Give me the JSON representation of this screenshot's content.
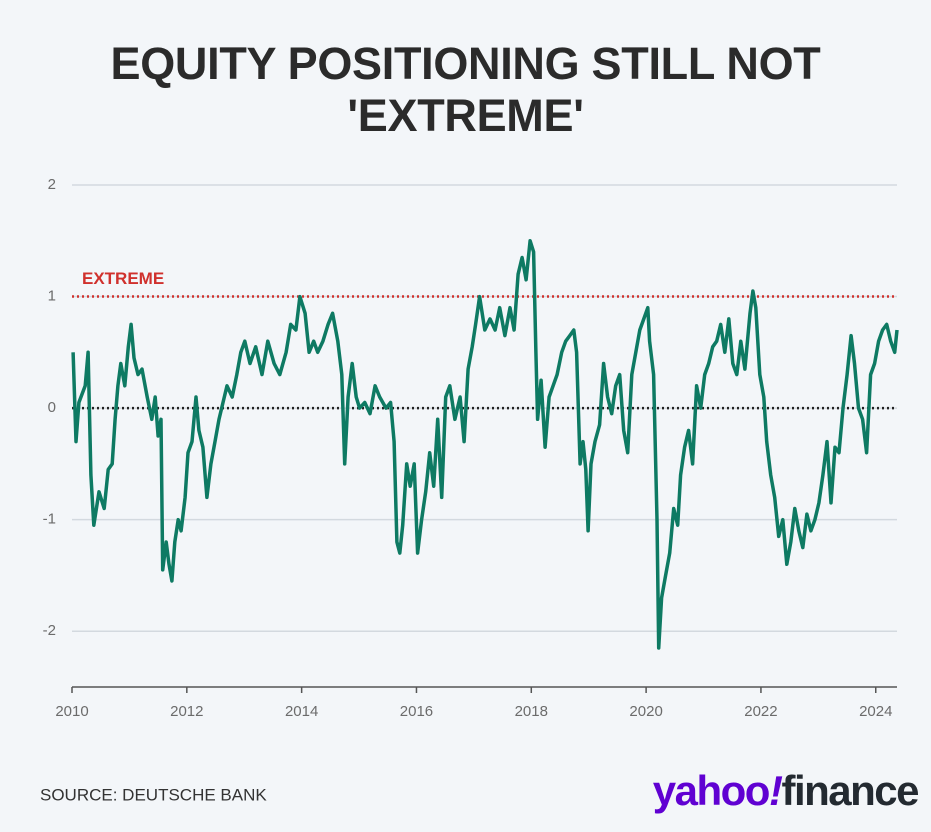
{
  "chart_data": {
    "type": "line",
    "title": "EQUITY POSITIONING STILL NOT 'EXTREME'",
    "source": "SOURCE: DEUTSCHE BANK",
    "logo": {
      "brand": "yahoo",
      "mark": "!",
      "product": "finance"
    },
    "x": [
      2010.02,
      2010.07,
      2010.12,
      2010.23,
      2010.28,
      2010.33,
      2010.38,
      2010.47,
      2010.56,
      2010.63,
      2010.7,
      2010.75,
      2010.8,
      2010.85,
      2010.92,
      2010.98,
      2011.03,
      2011.08,
      2011.15,
      2011.22,
      2011.31,
      2011.39,
      2011.45,
      2011.5,
      2011.55,
      2011.58,
      2011.64,
      2011.69,
      2011.74,
      2011.79,
      2011.85,
      2011.9,
      2011.97,
      2012.02,
      2012.09,
      2012.16,
      2012.21,
      2012.28,
      2012.35,
      2012.42,
      2012.49,
      2012.56,
      2012.63,
      2012.7,
      2012.79,
      2012.87,
      2012.94,
      2013.01,
      2013.1,
      2013.2,
      2013.31,
      2013.41,
      2013.52,
      2013.62,
      2013.73,
      2013.81,
      2013.9,
      2013.97,
      2014.06,
      2014.13,
      2014.21,
      2014.28,
      2014.37,
      2014.46,
      2014.54,
      2014.63,
      2014.7,
      2014.75,
      2014.81,
      2014.88,
      2014.95,
      2015.01,
      2015.1,
      2015.19,
      2015.28,
      2015.36,
      2015.47,
      2015.55,
      2015.61,
      2015.66,
      2015.71,
      2015.76,
      2015.83,
      2015.89,
      2015.96,
      2016.02,
      2016.09,
      2016.16,
      2016.23,
      2016.3,
      2016.37,
      2016.44,
      2016.51,
      2016.58,
      2016.67,
      2016.76,
      2016.83,
      2016.9,
      2016.97,
      2017.03,
      2017.1,
      2017.19,
      2017.28,
      2017.37,
      2017.45,
      2017.54,
      2017.63,
      2017.7,
      2017.77,
      2017.84,
      2017.91,
      2017.98,
      2018.04,
      2018.08,
      2018.11,
      2018.17,
      2018.24,
      2018.31,
      2018.38,
      2018.45,
      2018.53,
      2018.6,
      2018.67,
      2018.74,
      2018.79,
      2018.85,
      2018.9,
      2018.95,
      2018.99,
      2019.04,
      2019.11,
      2019.19,
      2019.26,
      2019.33,
      2019.4,
      2019.47,
      2019.54,
      2019.61,
      2019.68,
      2019.75,
      2019.82,
      2019.89,
      2019.96,
      2020.03,
      2020.06,
      2020.13,
      2020.19,
      2020.22,
      2020.27,
      2020.34,
      2020.41,
      2020.48,
      2020.55,
      2020.6,
      2020.67,
      2020.74,
      2020.81,
      2020.88,
      2020.95,
      2021.02,
      2021.09,
      2021.16,
      2021.23,
      2021.3,
      2021.37,
      2021.44,
      2021.51,
      2021.58,
      2021.65,
      2021.72,
      2021.81,
      2021.86,
      2021.91,
      2021.98,
      2022.05,
      2022.1,
      2022.17,
      2022.24,
      2022.31,
      2022.38,
      2022.45,
      2022.52,
      2022.59,
      2022.66,
      2022.73,
      2022.8,
      2022.87,
      2022.94,
      2023.01,
      2023.08,
      2023.15,
      2023.22,
      2023.29,
      2023.36,
      2023.43,
      2023.5,
      2023.57,
      2023.63,
      2023.7,
      2023.77,
      2023.84,
      2023.91,
      2023.98,
      2024.05,
      2024.12,
      2024.19,
      2024.26,
      2024.33,
      2024.37
    ],
    "series": [
      {
        "color": "#0e7a63",
        "values": [
          0.5,
          -0.3,
          0.05,
          0.2,
          0.5,
          -0.6,
          -1.05,
          -0.75,
          -0.9,
          -0.55,
          -0.5,
          -0.1,
          0.2,
          0.4,
          0.2,
          0.55,
          0.75,
          0.45,
          0.3,
          0.35,
          0.1,
          -0.1,
          0.1,
          -0.25,
          -0.1,
          -1.45,
          -1.2,
          -1.4,
          -1.55,
          -1.2,
          -1.0,
          -1.1,
          -0.8,
          -0.4,
          -0.3,
          0.1,
          -0.2,
          -0.35,
          -0.8,
          -0.5,
          -0.3,
          -0.1,
          0.05,
          0.2,
          0.1,
          0.3,
          0.5,
          0.6,
          0.4,
          0.55,
          0.3,
          0.6,
          0.4,
          0.3,
          0.5,
          0.75,
          0.7,
          1.0,
          0.85,
          0.5,
          0.6,
          0.5,
          0.6,
          0.75,
          0.85,
          0.6,
          0.3,
          -0.5,
          0.1,
          0.4,
          0.1,
          0.0,
          0.05,
          -0.05,
          0.2,
          0.1,
          0.0,
          0.05,
          -0.3,
          -1.2,
          -1.3,
          -1.05,
          -0.5,
          -0.7,
          -0.5,
          -1.3,
          -1.0,
          -0.75,
          -0.4,
          -0.7,
          -0.1,
          -0.8,
          0.1,
          0.2,
          -0.1,
          0.1,
          -0.3,
          0.35,
          0.55,
          0.75,
          1.0,
          0.7,
          0.8,
          0.7,
          0.9,
          0.65,
          0.9,
          0.7,
          1.2,
          1.35,
          1.15,
          1.5,
          1.4,
          0.5,
          -0.1,
          0.25,
          -0.35,
          0.1,
          0.2,
          0.3,
          0.5,
          0.6,
          0.65,
          0.7,
          0.5,
          -0.5,
          -0.3,
          -0.55,
          -1.1,
          -0.5,
          -0.3,
          -0.15,
          0.4,
          0.1,
          -0.05,
          0.2,
          0.3,
          -0.2,
          -0.4,
          0.3,
          0.5,
          0.7,
          0.8,
          0.9,
          0.6,
          0.3,
          -1.0,
          -2.15,
          -1.7,
          -1.5,
          -1.3,
          -0.9,
          -1.05,
          -0.6,
          -0.35,
          -0.2,
          -0.5,
          0.2,
          0.0,
          0.3,
          0.4,
          0.55,
          0.6,
          0.75,
          0.5,
          0.8,
          0.4,
          0.3,
          0.6,
          0.35,
          0.85,
          1.05,
          0.9,
          0.3,
          0.1,
          -0.3,
          -0.6,
          -0.8,
          -1.15,
          -1.0,
          -1.4,
          -1.2,
          -0.9,
          -1.1,
          -1.25,
          -0.95,
          -1.1,
          -1.0,
          -0.85,
          -0.6,
          -0.3,
          -0.85,
          -0.35,
          -0.4,
          0.0,
          0.3,
          0.65,
          0.4,
          0.0,
          -0.1,
          -0.4,
          0.3,
          0.4,
          0.6,
          0.7,
          0.75,
          0.6,
          0.5,
          0.7
        ]
      }
    ],
    "reference_lines": [
      {
        "value": 1,
        "label": "EXTREME",
        "color": "#d0312d"
      },
      {
        "value": 0,
        "color": "#222222"
      }
    ],
    "xlim": [
      2010,
      2024.37
    ],
    "xticks": [
      2010,
      2012,
      2014,
      2016,
      2018,
      2020,
      2022,
      2024
    ],
    "ylim": [
      -2.5,
      2
    ],
    "yticks": [
      -2,
      -1,
      0,
      1,
      2
    ],
    "grid": true
  }
}
